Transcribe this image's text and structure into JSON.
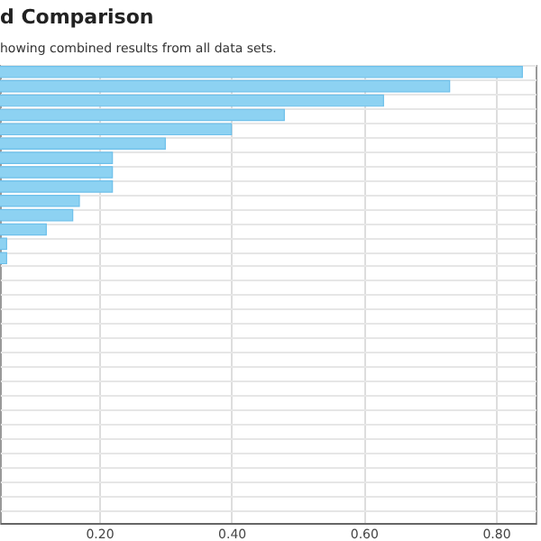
{
  "chart_data": {
    "type": "bar",
    "orientation": "horizontal",
    "title": "d Comparison",
    "subtitle": "howing combined results from all data sets.",
    "categories": [
      null,
      null,
      null,
      null,
      null,
      null,
      null,
      null,
      null,
      null,
      null,
      null,
      null,
      null,
      null,
      null,
      null,
      null,
      null,
      null,
      null,
      null,
      null,
      null,
      null,
      null,
      null,
      null,
      null,
      null,
      null,
      null
    ],
    "values": [
      0.84,
      0.73,
      0.63,
      0.48,
      0.4,
      0.3,
      0.22,
      0.22,
      0.22,
      0.17,
      0.16,
      0.12,
      0.06,
      0.06,
      null,
      null,
      null,
      null,
      null,
      null,
      null,
      null,
      null,
      null,
      null,
      null,
      null,
      null,
      null,
      null,
      null,
      null
    ],
    "color": "#8dd2f2",
    "xlim": [
      0.05,
      0.86
    ],
    "xticks": [
      {
        "value": 0.2,
        "label": "0.20"
      },
      {
        "value": 0.4,
        "label": "0.40"
      },
      {
        "value": 0.6,
        "label": "0.60"
      },
      {
        "value": 0.8,
        "label": "0.80"
      }
    ],
    "grid": true,
    "tick_labels": "x"
  }
}
